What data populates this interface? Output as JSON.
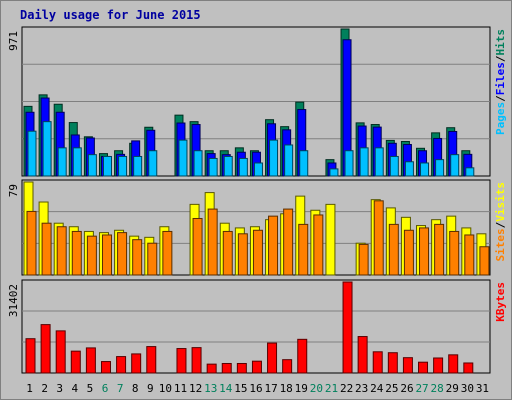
{
  "title": "Daily usage for June 2015",
  "colors": {
    "title": "#0000a0",
    "hits": "#00805c",
    "files": "#0000ff",
    "pages": "#00c0ff",
    "visits": "#ffff00",
    "sites": "#ff8000",
    "kbytes": "#ff0000",
    "weekend": "#00805c",
    "weekday": "#000000",
    "plot_bg": "#c0c0c0",
    "grid": "#808080"
  },
  "chart_data": [
    {
      "type": "bar",
      "panel": "hits-files-pages",
      "ylabel_max": "971",
      "ylim": [
        0,
        971
      ],
      "side_labels": [
        "Pages",
        "/",
        "Files",
        "/",
        "Hits"
      ],
      "categories": [
        "1",
        "2",
        "3",
        "4",
        "5",
        "6",
        "7",
        "8",
        "9",
        "10",
        "11",
        "12",
        "13",
        "14",
        "15",
        "16",
        "17",
        "18",
        "19",
        "20",
        "21",
        "22",
        "23",
        "24",
        "25",
        "26",
        "27",
        "28",
        "29",
        "30",
        "31"
      ],
      "series": [
        {
          "name": "Hits",
          "values": [
            460,
            536,
            474,
            353,
            259,
            148,
            167,
            216,
            322,
            0,
            402,
            359,
            167,
            167,
            186,
            167,
            372,
            326,
            488,
            0,
            108,
            971,
            351,
            340,
            235,
            228,
            183,
            285,
            319,
            167,
            0
          ]
        },
        {
          "name": "Files",
          "values": [
            421,
            515,
            421,
            271,
            251,
            129,
            143,
            232,
            302,
            0,
            350,
            340,
            148,
            141,
            157,
            157,
            345,
            305,
            439,
            0,
            86,
            900,
            330,
            323,
            216,
            208,
            167,
            248,
            294,
            143,
            0
          ]
        },
        {
          "name": "Pages",
          "values": [
            296,
            359,
            186,
            186,
            141,
            129,
            129,
            129,
            167,
            0,
            237,
            167,
            116,
            129,
            116,
            86,
            237,
            205,
            167,
            0,
            47,
            167,
            186,
            186,
            129,
            94,
            86,
            108,
            141,
            54,
            0
          ]
        }
      ]
    },
    {
      "type": "bar",
      "panel": "visits-sites",
      "ylabel_max": "79",
      "ylim": [
        0,
        79
      ],
      "side_labels": [
        "Sites",
        "/",
        "Visits"
      ],
      "categories": [
        "1",
        "2",
        "3",
        "4",
        "5",
        "6",
        "7",
        "8",
        "9",
        "10",
        "11",
        "12",
        "13",
        "14",
        "15",
        "16",
        "17",
        "18",
        "19",
        "20",
        "21",
        "22",
        "23",
        "24",
        "25",
        "26",
        "27",
        "28",
        "29",
        "30",
        "31"
      ],
      "series": [
        {
          "name": "Visits",
          "values": [
            79,
            62,
            44,
            41,
            37,
            36,
            38,
            33,
            32,
            41,
            0,
            60,
            70,
            44,
            40,
            41,
            47,
            52,
            67,
            55,
            60,
            0,
            27,
            64,
            57,
            49,
            42,
            47,
            50,
            40,
            35
          ]
        },
        {
          "name": "Sites",
          "values": [
            54,
            44,
            41,
            37,
            33,
            34,
            36,
            30,
            27,
            37,
            0,
            48,
            56,
            37,
            35,
            38,
            50,
            56,
            43,
            51,
            0,
            0,
            26,
            63,
            43,
            38,
            40,
            43,
            37,
            34,
            24
          ]
        }
      ]
    },
    {
      "type": "bar",
      "panel": "kbytes",
      "ylabel_max": "31402",
      "ylim": [
        0,
        31402
      ],
      "side_labels": [
        "KBytes"
      ],
      "categories": [
        "1",
        "2",
        "3",
        "4",
        "5",
        "6",
        "7",
        "8",
        "9",
        "10",
        "11",
        "12",
        "13",
        "14",
        "15",
        "16",
        "17",
        "18",
        "19",
        "20",
        "21",
        "22",
        "23",
        "24",
        "25",
        "26",
        "27",
        "28",
        "29",
        "30",
        "31"
      ],
      "series": [
        {
          "name": "KBytes",
          "values": [
            11840,
            16700,
            14540,
            7540,
            8660,
            3950,
            5670,
            6590,
            9120,
            0,
            8440,
            8760,
            3060,
            3280,
            3280,
            4080,
            10330,
            4600,
            11620,
            0,
            0,
            31402,
            12580,
            7320,
            7000,
            5290,
            3730,
            5180,
            6270,
            3460,
            0
          ]
        }
      ]
    }
  ],
  "days": [
    {
      "label": "1",
      "weekend": false
    },
    {
      "label": "2",
      "weekend": false
    },
    {
      "label": "3",
      "weekend": false
    },
    {
      "label": "4",
      "weekend": false
    },
    {
      "label": "5",
      "weekend": false
    },
    {
      "label": "6",
      "weekend": true
    },
    {
      "label": "7",
      "weekend": true
    },
    {
      "label": "8",
      "weekend": false
    },
    {
      "label": "9",
      "weekend": false
    },
    {
      "label": "10",
      "weekend": false
    },
    {
      "label": "11",
      "weekend": false
    },
    {
      "label": "12",
      "weekend": false
    },
    {
      "label": "13",
      "weekend": true
    },
    {
      "label": "14",
      "weekend": true
    },
    {
      "label": "15",
      "weekend": false
    },
    {
      "label": "16",
      "weekend": false
    },
    {
      "label": "17",
      "weekend": false
    },
    {
      "label": "18",
      "weekend": false
    },
    {
      "label": "19",
      "weekend": false
    },
    {
      "label": "20",
      "weekend": true
    },
    {
      "label": "21",
      "weekend": true
    },
    {
      "label": "22",
      "weekend": false
    },
    {
      "label": "23",
      "weekend": false
    },
    {
      "label": "24",
      "weekend": false
    },
    {
      "label": "25",
      "weekend": false
    },
    {
      "label": "26",
      "weekend": false
    },
    {
      "label": "27",
      "weekend": true
    },
    {
      "label": "28",
      "weekend": true
    },
    {
      "label": "29",
      "weekend": false
    },
    {
      "label": "30",
      "weekend": false
    },
    {
      "label": "31",
      "weekend": false
    }
  ]
}
